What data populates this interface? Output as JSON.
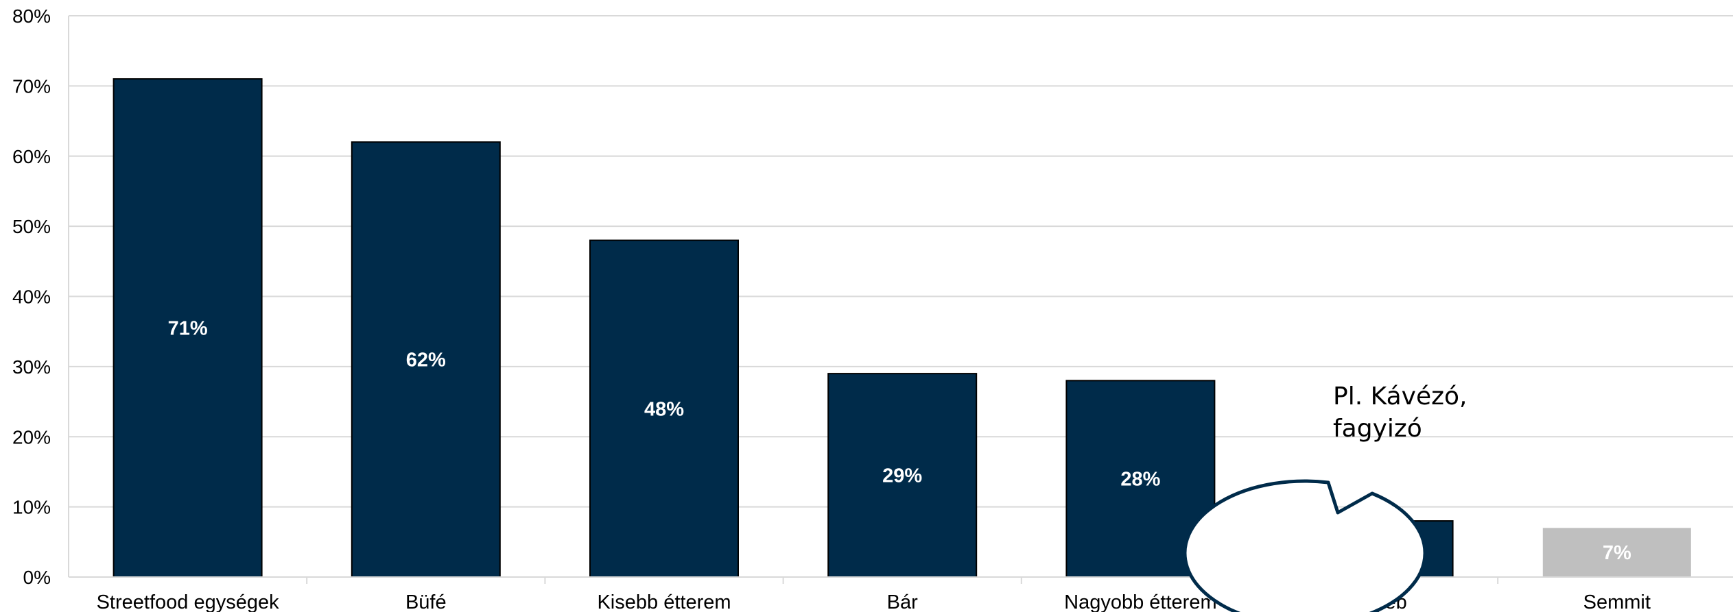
{
  "chart_data": {
    "type": "bar",
    "categories": [
      "Streetfood egységek",
      "Büfé",
      "Kisebb étterem",
      "Bár",
      "Nagyobb étterem",
      "Egyéb",
      "Semmit"
    ],
    "values": [
      71,
      62,
      48,
      29,
      28,
      8,
      7
    ],
    "data_labels": [
      "71%",
      "62%",
      "48%",
      "29%",
      "28%",
      "8%",
      "7%"
    ],
    "bar_colors": [
      "#002b4a",
      "#002b4a",
      "#002b4a",
      "#002b4a",
      "#002b4a",
      "#002b4a",
      "#bfbfbf"
    ],
    "ylim": [
      0,
      80
    ],
    "yticks": [
      0,
      10,
      20,
      30,
      40,
      50,
      60,
      70,
      80
    ],
    "ytick_labels": [
      "0%",
      "10%",
      "20%",
      "30%",
      "40%",
      "50%",
      "60%",
      "70%",
      "80%"
    ],
    "grid": true,
    "annotation": {
      "lines": [
        "Pl. Kávézó,",
        "fagyizó"
      ],
      "points_to": "Egyéb"
    }
  }
}
